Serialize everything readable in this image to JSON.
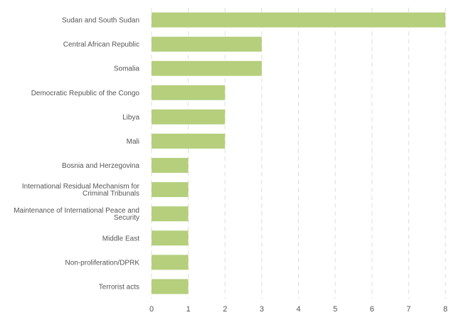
{
  "chart_data": {
    "type": "bar",
    "orientation": "horizontal",
    "categories": [
      "Sudan and South Sudan",
      "Central African Republic",
      "Somalia",
      "Democratic Republic of the Congo",
      "Libya",
      "Mali",
      "Bosnia and Herzegovina",
      "International Residual Mechanism for Criminal Tribunals",
      "Maintenance of International Peace and Security",
      "Middle East",
      "Non-proliferation/DPRK",
      "Terrorist acts"
    ],
    "category_lines": [
      [
        "Sudan and South Sudan"
      ],
      [
        "Central African Republic"
      ],
      [
        "Somalia"
      ],
      [
        "Democratic Republic of the Congo"
      ],
      [
        "Libya"
      ],
      [
        "Mali"
      ],
      [
        "Bosnia and Herzegovina"
      ],
      [
        "International Residual Mechanism for",
        "Criminal Tribunals"
      ],
      [
        "Maintenance of International Peace and",
        "Security"
      ],
      [
        "Middle East"
      ],
      [
        "Non-proliferation/DPRK"
      ],
      [
        "Terrorist acts"
      ]
    ],
    "values": [
      8,
      3,
      3,
      2,
      2,
      2,
      1,
      1,
      1,
      1,
      1,
      1
    ],
    "xlim": [
      0,
      8
    ],
    "xticks": [
      0,
      1,
      2,
      3,
      4,
      5,
      6,
      7,
      8
    ],
    "grid": "vertical-dashed",
    "bar_color": "#b5cf7c",
    "title": "",
    "xlabel": "",
    "ylabel": ""
  }
}
